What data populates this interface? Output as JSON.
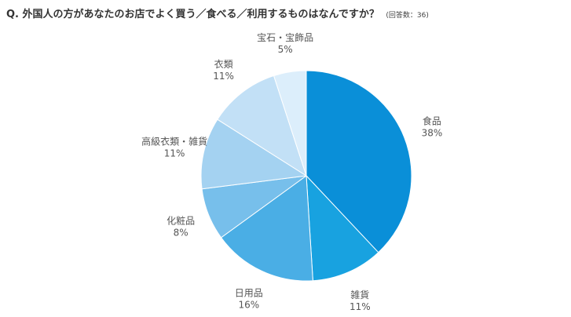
{
  "question": {
    "text": "Q. 外国人の方があなたのお店でよく買う／食べる／利用するものはなんですか？",
    "note": "(回答数：36)"
  },
  "chart_data": {
    "type": "pie",
    "start": "12 o'clock",
    "direction": "clockwise",
    "slices": [
      {
        "name": "食品",
        "value": 38,
        "label": "38%",
        "color": "#0a8fd8"
      },
      {
        "name": "雑貨",
        "value": 11,
        "label": "11%",
        "color": "#18a2e0"
      },
      {
        "name": "日用品",
        "value": 16,
        "label": "16%",
        "color": "#4aaee5"
      },
      {
        "name": "化粧品",
        "value": 8,
        "label": "8%",
        "color": "#77bfeb"
      },
      {
        "name": "高級衣類・雑貨",
        "value": 11,
        "label": "11%",
        "color": "#a4d2f1"
      },
      {
        "name": "衣類",
        "value": 11,
        "label": "11%",
        "color": "#c2e0f6"
      },
      {
        "name": "宝石・宝飾品",
        "value": 5,
        "label": "5%",
        "color": "#dceefb"
      }
    ]
  }
}
